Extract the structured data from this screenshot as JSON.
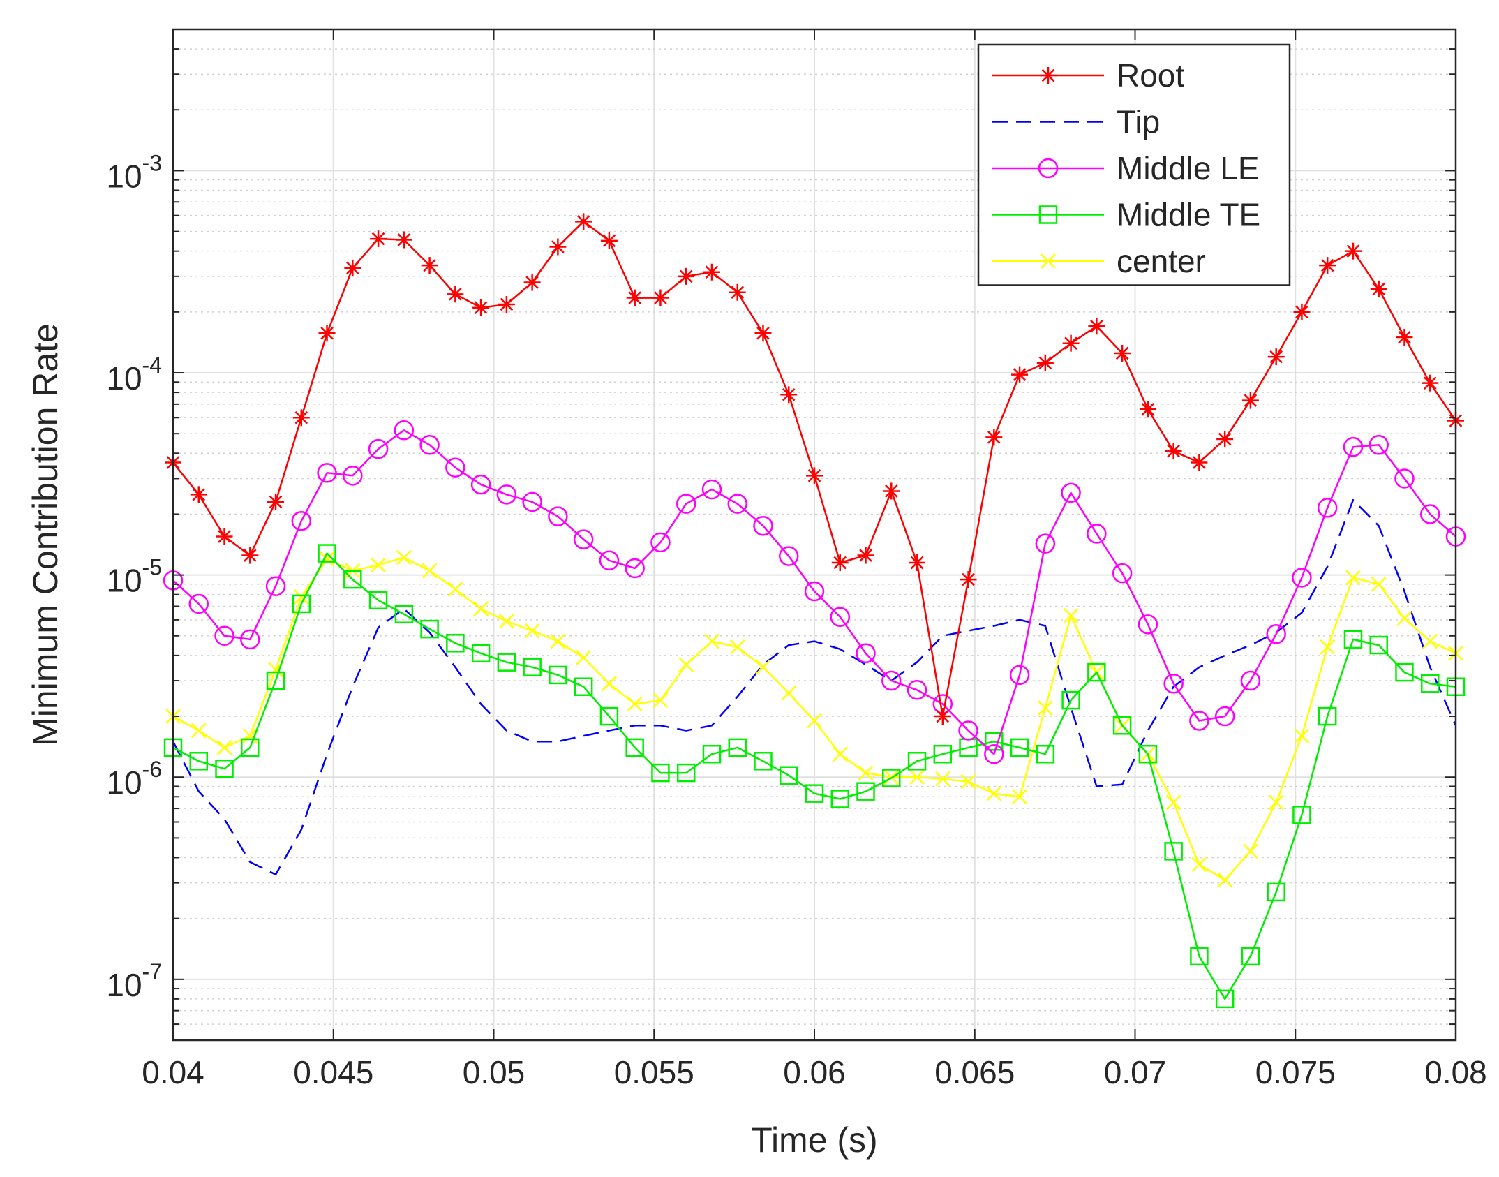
{
  "chart_data": {
    "type": "line",
    "xlabel": "Time (s)",
    "ylabel": "Minimum Contribution Rate",
    "xlim": [
      0.04,
      0.08
    ],
    "ylim": [
      5e-08,
      0.005
    ],
    "yscale": "log",
    "grid": true,
    "minor_grid": true,
    "legend_position": "top-right",
    "xticks": [
      0.04,
      0.045,
      0.05,
      0.055,
      0.06,
      0.065,
      0.07,
      0.075,
      0.08
    ],
    "xtick_labels": [
      "0.04",
      "0.045",
      "0.05",
      "0.055",
      "0.06",
      "0.065",
      "0.07",
      "0.075",
      "0.08"
    ],
    "yticks": [
      {
        "value": 1e-07,
        "base": "10",
        "exp": "-7"
      },
      {
        "value": 1e-06,
        "base": "10",
        "exp": "-6"
      },
      {
        "value": 1e-05,
        "base": "10",
        "exp": "-5"
      },
      {
        "value": 0.0001,
        "base": "10",
        "exp": "-4"
      },
      {
        "value": 0.001,
        "base": "10",
        "exp": "-3"
      }
    ],
    "series": [
      {
        "name": "Root",
        "color": "#ff0000",
        "dash": "solid",
        "marker": "asterisk",
        "x": [
          0.04,
          0.0408,
          0.0416,
          0.0424,
          0.0432,
          0.044,
          0.0448,
          0.0456,
          0.0464,
          0.0472,
          0.048,
          0.0488,
          0.0496,
          0.0504,
          0.0512,
          0.052,
          0.0528,
          0.0536,
          0.0544,
          0.0552,
          0.056,
          0.0568,
          0.0576,
          0.0584,
          0.0592,
          0.06,
          0.0608,
          0.0616,
          0.0624,
          0.0632,
          0.064,
          0.0648,
          0.0656,
          0.0664,
          0.0672,
          0.068,
          0.0688,
          0.0696,
          0.0704,
          0.0712,
          0.072,
          0.0728,
          0.0736,
          0.0744,
          0.0752,
          0.076,
          0.0768,
          0.0776,
          0.0784,
          0.0792,
          0.08
        ],
        "y": [
          3.6e-05,
          2.5e-05,
          1.55e-05,
          1.25e-05,
          2.3e-05,
          6e-05,
          0.000157,
          0.00033,
          0.00046,
          0.000455,
          0.00034,
          0.000245,
          0.00021,
          0.000218,
          0.00028,
          0.00042,
          0.00056,
          0.00045,
          0.000235,
          0.000235,
          0.0003,
          0.000315,
          0.00025,
          0.000157,
          7.8e-05,
          3.1e-05,
          1.15e-05,
          1.25e-05,
          2.6e-05,
          1.15e-05,
          2e-06,
          9.5e-06,
          4.8e-05,
          9.8e-05,
          0.000112,
          0.00014,
          0.00017,
          0.000125,
          6.6e-05,
          4.1e-05,
          3.6e-05,
          4.7e-05,
          7.3e-05,
          0.00012,
          0.0002,
          0.00034,
          0.0004,
          0.00026,
          0.00015,
          8.9e-05,
          5.8e-05
        ]
      },
      {
        "name": "Tip",
        "color": "#0000ff",
        "dash": "dashed",
        "marker": "none",
        "x": [
          0.04,
          0.0408,
          0.0416,
          0.0424,
          0.0432,
          0.044,
          0.0448,
          0.0456,
          0.0464,
          0.0472,
          0.048,
          0.0488,
          0.0496,
          0.0504,
          0.0512,
          0.052,
          0.0528,
          0.0536,
          0.0544,
          0.0552,
          0.056,
          0.0568,
          0.0576,
          0.0584,
          0.0592,
          0.06,
          0.0608,
          0.0616,
          0.0624,
          0.0632,
          0.064,
          0.0648,
          0.0656,
          0.0664,
          0.0672,
          0.068,
          0.0688,
          0.0696,
          0.0704,
          0.0712,
          0.072,
          0.0728,
          0.0736,
          0.0744,
          0.0752,
          0.076,
          0.0768,
          0.0776,
          0.0784,
          0.0792,
          0.08
        ],
        "y": [
          1.5e-06,
          8.5e-07,
          6.2e-07,
          3.8e-07,
          3.3e-07,
          5.5e-07,
          1.3e-06,
          2.8e-06,
          5.5e-06,
          6.8e-06,
          5.2e-06,
          3.5e-06,
          2.3e-06,
          1.7e-06,
          1.5e-06,
          1.5e-06,
          1.6e-06,
          1.7e-06,
          1.8e-06,
          1.8e-06,
          1.7e-06,
          1.8e-06,
          2.5e-06,
          3.6e-06,
          4.5e-06,
          4.7e-06,
          4.3e-06,
          3.6e-06,
          3e-06,
          3.7e-06,
          5e-06,
          5.3e-06,
          5.6e-06,
          6e-06,
          5.6e-06,
          2.2e-06,
          9e-07,
          9.2e-07,
          1.7e-06,
          2.8e-06,
          3.5e-06,
          4e-06,
          4.5e-06,
          5.2e-06,
          6.5e-06,
          1.1e-05,
          2.35e-05,
          1.75e-05,
          8.3e-06,
          3.5e-06,
          1.8e-06
        ]
      },
      {
        "name": "Middle LE",
        "color": "#ff00ff",
        "dash": "solid",
        "marker": "circle",
        "x": [
          0.04,
          0.0408,
          0.0416,
          0.0424,
          0.0432,
          0.044,
          0.0448,
          0.0456,
          0.0464,
          0.0472,
          0.048,
          0.0488,
          0.0496,
          0.0504,
          0.0512,
          0.052,
          0.0528,
          0.0536,
          0.0544,
          0.0552,
          0.056,
          0.0568,
          0.0576,
          0.0584,
          0.0592,
          0.06,
          0.0608,
          0.0616,
          0.0624,
          0.0632,
          0.064,
          0.0648,
          0.0656,
          0.0664,
          0.0672,
          0.068,
          0.0688,
          0.0696,
          0.0704,
          0.0712,
          0.072,
          0.0728,
          0.0736,
          0.0744,
          0.0752,
          0.076,
          0.0768,
          0.0776,
          0.0784,
          0.0792,
          0.08
        ],
        "y": [
          9.4e-06,
          7.2e-06,
          5e-06,
          4.8e-06,
          8.8e-06,
          1.85e-05,
          3.2e-05,
          3.1e-05,
          4.2e-05,
          5.2e-05,
          4.4e-05,
          3.4e-05,
          2.8e-05,
          2.5e-05,
          2.3e-05,
          1.95e-05,
          1.5e-05,
          1.18e-05,
          1.08e-05,
          1.45e-05,
          2.25e-05,
          2.65e-05,
          2.25e-05,
          1.75e-05,
          1.24e-05,
          8.3e-06,
          6.2e-06,
          4.1e-06,
          3e-06,
          2.7e-06,
          2.3e-06,
          1.7e-06,
          1.3e-06,
          3.2e-06,
          1.43e-05,
          2.55e-05,
          1.6e-05,
          1.02e-05,
          5.7e-06,
          2.9e-06,
          1.9e-06,
          2e-06,
          3e-06,
          5.1e-06,
          9.7e-06,
          2.15e-05,
          4.3e-05,
          4.4e-05,
          3e-05,
          2e-05,
          1.55e-05
        ]
      },
      {
        "name": "Middle TE",
        "color": "#00ee00",
        "dash": "solid",
        "marker": "square",
        "x": [
          0.04,
          0.0408,
          0.0416,
          0.0424,
          0.0432,
          0.044,
          0.0448,
          0.0456,
          0.0464,
          0.0472,
          0.048,
          0.0488,
          0.0496,
          0.0504,
          0.0512,
          0.052,
          0.0528,
          0.0536,
          0.0544,
          0.0552,
          0.056,
          0.0568,
          0.0576,
          0.0584,
          0.0592,
          0.06,
          0.0608,
          0.0616,
          0.0624,
          0.0632,
          0.064,
          0.0648,
          0.0656,
          0.0664,
          0.0672,
          0.068,
          0.0688,
          0.0696,
          0.0704,
          0.0712,
          0.072,
          0.0728,
          0.0736,
          0.0744,
          0.0752,
          0.076,
          0.0768,
          0.0776,
          0.0784,
          0.0792,
          0.08
        ],
        "y": [
          1.4e-06,
          1.2e-06,
          1.1e-06,
          1.4e-06,
          3e-06,
          7.2e-06,
          1.28e-05,
          9.5e-06,
          7.5e-06,
          6.4e-06,
          5.4e-06,
          4.6e-06,
          4.1e-06,
          3.7e-06,
          3.5e-06,
          3.2e-06,
          2.8e-06,
          2e-06,
          1.4e-06,
          1.05e-06,
          1.05e-06,
          1.3e-06,
          1.4e-06,
          1.2e-06,
          1.02e-06,
          8.3e-07,
          7.8e-07,
          8.5e-07,
          9.9e-07,
          1.2e-06,
          1.3e-06,
          1.4e-06,
          1.5e-06,
          1.4e-06,
          1.3e-06,
          2.4e-06,
          3.3e-06,
          1.8e-06,
          1.3e-06,
          4.3e-07,
          1.3e-07,
          8e-08,
          1.3e-07,
          2.7e-07,
          6.5e-07,
          2e-06,
          4.8e-06,
          4.5e-06,
          3.3e-06,
          2.9e-06,
          2.8e-06
        ]
      },
      {
        "name": "center",
        "color": "#ffff00",
        "dash": "solid",
        "marker": "x",
        "x": [
          0.04,
          0.0408,
          0.0416,
          0.0424,
          0.0432,
          0.044,
          0.0448,
          0.0456,
          0.0464,
          0.0472,
          0.048,
          0.0488,
          0.0496,
          0.0504,
          0.0512,
          0.052,
          0.0528,
          0.0536,
          0.0544,
          0.0552,
          0.056,
          0.0568,
          0.0576,
          0.0584,
          0.0592,
          0.06,
          0.0608,
          0.0616,
          0.0624,
          0.0632,
          0.064,
          0.0648,
          0.0656,
          0.0664,
          0.0672,
          0.068,
          0.0688,
          0.0696,
          0.0704,
          0.0712,
          0.072,
          0.0728,
          0.0736,
          0.0744,
          0.0752,
          0.076,
          0.0768,
          0.0776,
          0.0784,
          0.0792,
          0.08
        ],
        "y": [
          2e-06,
          1.7e-06,
          1.4e-06,
          1.6e-06,
          3.4e-06,
          7.8e-06,
          1.2e-05,
          1.05e-05,
          1.12e-05,
          1.22e-05,
          1.05e-05,
          8.5e-06,
          6.8e-06,
          5.9e-06,
          5.3e-06,
          4.7e-06,
          3.9e-06,
          2.9e-06,
          2.3e-06,
          2.4e-06,
          3.6e-06,
          4.7e-06,
          4.4e-06,
          3.5e-06,
          2.6e-06,
          1.9e-06,
          1.3e-06,
          1.05e-06,
          1e-06,
          1e-06,
          9.8e-07,
          9.5e-07,
          8.3e-07,
          8e-07,
          2.2e-06,
          6.3e-06,
          3.3e-06,
          1.8e-06,
          1.3e-06,
          7.5e-07,
          3.7e-07,
          3.1e-07,
          4.3e-07,
          7.5e-07,
          1.6e-06,
          4.4e-06,
          9.7e-06,
          9e-06,
          6.1e-06,
          4.7e-06,
          4.1e-06
        ]
      }
    ]
  }
}
